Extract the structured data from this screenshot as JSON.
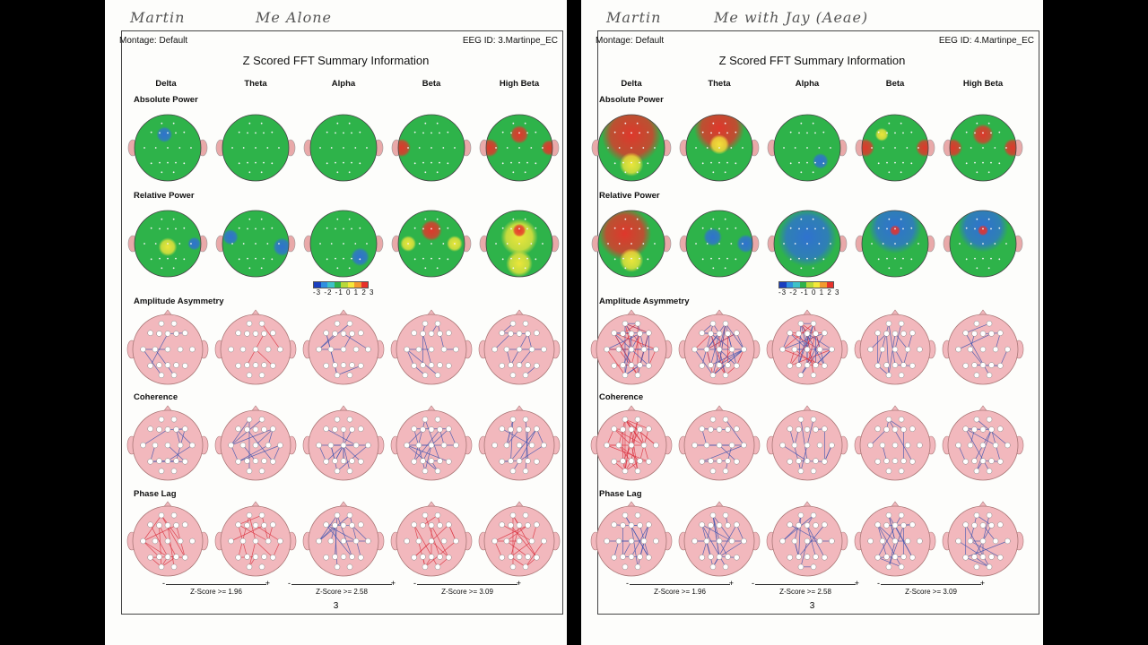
{
  "pages": [
    {
      "handwritten_name": "Martin",
      "handwritten_note": "Me Alone",
      "montage": "Montage:  Default",
      "eeg_id": "EEG ID:  3.Martinpe_EC",
      "title": "Z Scored FFT Summary Information",
      "bands": [
        "Delta",
        "Theta",
        "Alpha",
        "Beta",
        "High Beta"
      ],
      "rows": [
        "Absolute Power",
        "Relative Power",
        "Amplitude Asymmetry",
        "Coherence",
        "Phase Lag"
      ],
      "scale_ticks": "-3 -2 -1 0 1 2 3",
      "zscores": [
        "Z-Score >= 1.96",
        "Z-Score >= 2.58",
        "Z-Score >= 3.09"
      ],
      "minus": "-",
      "plus": "+",
      "page_number": "3"
    },
    {
      "handwritten_name": "Martin",
      "handwritten_note": "Me with Jay (Aeae)",
      "montage": "Montage:  Default",
      "eeg_id": "EEG ID:  4.Martinpe_EC",
      "title": "Z Scored FFT Summary Information",
      "bands": [
        "Delta",
        "Theta",
        "Alpha",
        "Beta",
        "High Beta"
      ],
      "rows": [
        "Absolute Power",
        "Relative Power",
        "Amplitude Asymmetry",
        "Coherence",
        "Phase Lag"
      ],
      "scale_ticks": "-3 -2 -1 0 1 2 3",
      "zscores": [
        "Z-Score >= 1.96",
        "Z-Score >= 2.58",
        "Z-Score >= 3.09"
      ],
      "minus": "-",
      "plus": "+",
      "page_number": "3"
    }
  ],
  "colors": {
    "scalp_green": "#2eb34a",
    "hot": "#e8312a",
    "warm": "#f5e83a",
    "cool": "#2f6fd6",
    "connect_head": "#f2b8bd",
    "pos_line": "#d9323f",
    "neg_line": "#3b52b0"
  },
  "map_features": [
    [
      [
        [
          [
            "cool",
            0.45,
            0.3,
            0.12
          ]
        ],
        [],
        [],
        [
          [
            "hot",
            0.05,
            0.5,
            0.14
          ]
        ],
        [
          [
            "hot",
            0.5,
            0.3,
            0.14
          ],
          [
            "hot",
            0.05,
            0.5,
            0.14
          ],
          [
            "hot",
            0.95,
            0.5,
            0.12
          ]
        ]
      ],
      [
        [
          [
            "warm",
            0.5,
            0.55,
            0.14
          ],
          [
            "cool",
            0.9,
            0.5,
            0.1
          ]
        ],
        [
          [
            "cool",
            0.12,
            0.4,
            0.12
          ],
          [
            "cool",
            0.9,
            0.55,
            0.14
          ]
        ],
        [
          [
            "cool",
            0.75,
            0.7,
            0.14
          ]
        ],
        [
          [
            "hot",
            0.5,
            0.3,
            0.16
          ],
          [
            "warm",
            0.15,
            0.5,
            0.12
          ],
          [
            "warm",
            0.85,
            0.5,
            0.12
          ]
        ],
        [
          [
            "warm",
            0.5,
            0.4,
            0.28
          ],
          [
            "hot",
            0.5,
            0.3,
            0.1
          ],
          [
            "warm",
            0.5,
            0.8,
            0.2
          ]
        ]
      ]
    ],
    [
      [
        [
          [
            "hot",
            0.5,
            0.3,
            0.45
          ],
          [
            "warm",
            0.5,
            0.75,
            0.18
          ]
        ],
        [
          [
            "hot",
            0.5,
            0.2,
            0.38
          ],
          [
            "warm",
            0.5,
            0.45,
            0.15
          ]
        ],
        [
          [
            "cool",
            0.7,
            0.7,
            0.12
          ]
        ],
        [
          [
            "hot",
            0.05,
            0.5,
            0.14
          ],
          [
            "hot",
            0.95,
            0.5,
            0.14
          ],
          [
            "warm",
            0.3,
            0.3,
            0.1
          ]
        ],
        [
          [
            "hot",
            0.5,
            0.3,
            0.16
          ],
          [
            "hot",
            0.05,
            0.5,
            0.14
          ],
          [
            "hot",
            0.95,
            0.5,
            0.14
          ]
        ]
      ],
      [
        [
          [
            "hot",
            0.4,
            0.35,
            0.4
          ],
          [
            "warm",
            0.5,
            0.75,
            0.18
          ]
        ],
        [
          [
            "cool",
            0.4,
            0.4,
            0.14
          ],
          [
            "cool",
            0.9,
            0.5,
            0.14
          ]
        ],
        [
          [
            "cool",
            0.5,
            0.4,
            0.45
          ]
        ],
        [
          [
            "cool",
            0.5,
            0.25,
            0.4
          ],
          [
            "hot",
            0.5,
            0.3,
            0.08
          ]
        ],
        [
          [
            "cool",
            0.5,
            0.25,
            0.38
          ],
          [
            "hot",
            0.5,
            0.3,
            0.08
          ]
        ]
      ]
    ]
  ],
  "connect_features": [
    [
      [
        [
          5,
          "neg"
        ],
        [
          3,
          "pos"
        ],
        [
          8,
          "neg"
        ],
        [
          10,
          "neg"
        ],
        [
          9,
          "neg"
        ]
      ],
      [
        [
          14,
          "neg"
        ],
        [
          12,
          "neg"
        ],
        [
          14,
          "neg"
        ],
        [
          18,
          "neg"
        ],
        [
          14,
          "neg"
        ]
      ],
      [
        [
          16,
          "pos"
        ],
        [
          14,
          "pos"
        ],
        [
          14,
          "neg"
        ],
        [
          16,
          "pos"
        ],
        [
          16,
          "pos"
        ]
      ]
    ],
    [
      [
        [
          40,
          "mix"
        ],
        [
          38,
          "mix"
        ],
        [
          40,
          "mix"
        ],
        [
          12,
          "neg"
        ],
        [
          10,
          "neg"
        ]
      ],
      [
        [
          36,
          "pos"
        ],
        [
          10,
          "neg"
        ],
        [
          10,
          "neg"
        ],
        [
          6,
          "neg"
        ],
        [
          12,
          "neg"
        ]
      ],
      [
        [
          16,
          "neg"
        ],
        [
          18,
          "neg"
        ],
        [
          14,
          "neg"
        ],
        [
          16,
          "neg"
        ],
        [
          14,
          "neg"
        ]
      ]
    ]
  ]
}
